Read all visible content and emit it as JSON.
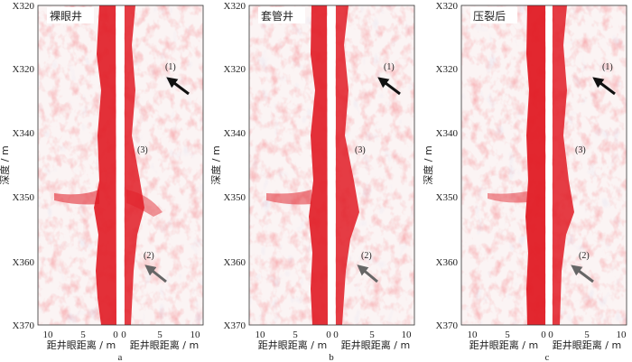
{
  "figure": {
    "panels": [
      {
        "title": "裸眼井",
        "sublabel": "a",
        "y_ticks": [
          "X320",
          "X320",
          "X340",
          "X350",
          "X360",
          "X370"
        ],
        "x_ticks_left": [
          "10",
          "5",
          "0"
        ],
        "x_ticks_right": [
          "0",
          "5",
          "10"
        ],
        "markers": [
          {
            "label": "(1)",
            "arrow": "black-arrow"
          },
          {
            "label": "(3)",
            "arrow": ""
          },
          {
            "label": "(2)",
            "arrow": "gray-arrow"
          }
        ]
      },
      {
        "title": "套管井",
        "sublabel": "b",
        "y_ticks": [
          "X320",
          "X320",
          "X340",
          "X350",
          "X360",
          "X370"
        ],
        "x_ticks_left": [
          "10",
          "5",
          "0"
        ],
        "x_ticks_right": [
          "0",
          "5",
          "10"
        ],
        "markers": [
          {
            "label": "(1)",
            "arrow": "black-arrow"
          },
          {
            "label": "(3)",
            "arrow": ""
          },
          {
            "label": "(2)",
            "arrow": "gray-arrow"
          }
        ]
      },
      {
        "title": "压裂后",
        "sublabel": "c",
        "y_ticks": [
          "X320",
          "X320",
          "X340",
          "X350",
          "X360",
          "X370"
        ],
        "x_ticks_left": [
          "10",
          "5",
          "0"
        ],
        "x_ticks_right": [
          "0",
          "5",
          "10"
        ],
        "markers": [
          {
            "label": "(1)",
            "arrow": "black-arrow"
          },
          {
            "label": "(3)",
            "arrow": ""
          },
          {
            "label": "(2)",
            "arrow": "gray-arrow"
          }
        ]
      }
    ],
    "ylabel": "深度 / m",
    "xlabel_left": "距井眼距离 / m",
    "xlabel_right": "距井眼距离 / m",
    "colors": {
      "red": "#e01b24",
      "blue": "#7f8fd0",
      "frame": "#333333"
    }
  }
}
